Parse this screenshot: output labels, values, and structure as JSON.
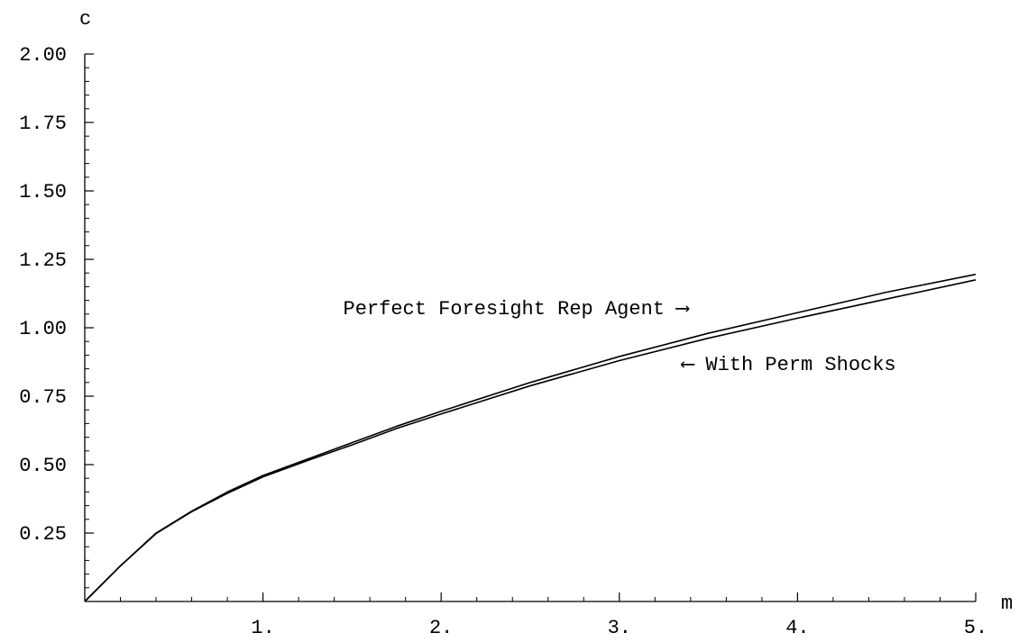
{
  "chart_data": {
    "type": "line",
    "xlabel": "m",
    "ylabel": "c",
    "xlim": [
      0,
      5
    ],
    "ylim": [
      0,
      2
    ],
    "x_ticks": [
      {
        "value": 1,
        "label": "1."
      },
      {
        "value": 2,
        "label": "2."
      },
      {
        "value": 3,
        "label": "3."
      },
      {
        "value": 4,
        "label": "4."
      },
      {
        "value": 5,
        "label": "5."
      }
    ],
    "y_ticks": [
      {
        "value": 0.25,
        "label": "0.25"
      },
      {
        "value": 0.5,
        "label": "0.50"
      },
      {
        "value": 0.75,
        "label": "0.75"
      },
      {
        "value": 1.0,
        "label": "1.00"
      },
      {
        "value": 1.25,
        "label": "1.25"
      },
      {
        "value": 1.5,
        "label": "1.50"
      },
      {
        "value": 1.75,
        "label": "1.75"
      },
      {
        "value": 2.0,
        "label": "2.00"
      }
    ],
    "series": [
      {
        "x": [
          0,
          0.2,
          0.4,
          0.6,
          0.8,
          1.0,
          1.25,
          1.5,
          1.75,
          2.0,
          2.5,
          3.0,
          3.5,
          4.0,
          4.5,
          5.0
        ],
        "values": [
          0,
          0.13,
          0.25,
          0.33,
          0.4,
          0.46,
          0.52,
          0.58,
          0.64,
          0.695,
          0.8,
          0.895,
          0.98,
          1.055,
          1.13,
          1.195
        ]
      },
      {
        "x": [
          0,
          0.2,
          0.4,
          0.6,
          0.8,
          1.0,
          1.25,
          1.5,
          1.75,
          2.0,
          2.5,
          3.0,
          3.5,
          4.0,
          4.5,
          5.0
        ],
        "values": [
          0,
          0.13,
          0.248,
          0.328,
          0.395,
          0.455,
          0.515,
          0.572,
          0.632,
          0.685,
          0.788,
          0.88,
          0.962,
          1.035,
          1.105,
          1.175
        ]
      }
    ],
    "annotations": [
      {
        "text": "Perfect Foresight Rep Agent",
        "arrow": "⟶",
        "arrow_side": "right",
        "x": 1.45,
        "y": 1.05
      },
      {
        "text": "With Perm Shocks",
        "arrow": "⟵",
        "arrow_side": "left",
        "x": 3.35,
        "y": 0.845
      }
    ],
    "grid": false,
    "legend": "none"
  }
}
